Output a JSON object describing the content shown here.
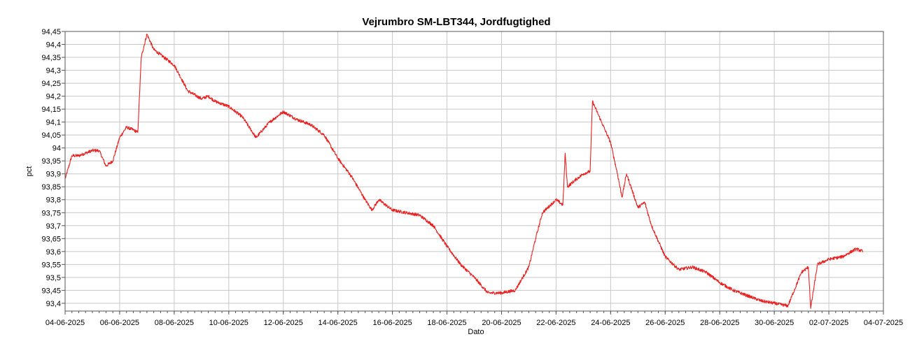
{
  "chart_data": {
    "type": "line",
    "title": "Vejrumbro SM-LBT344, Jordfugtighed",
    "xlabel": "Dato",
    "ylabel": "pct",
    "x_range": [
      "2025-06-04",
      "2025-07-04"
    ],
    "ylim": [
      93.37,
      94.45
    ],
    "grid": true,
    "x_ticks": [
      "04-06-2025",
      "06-06-2025",
      "08-06-2025",
      "10-06-2025",
      "12-06-2025",
      "14-06-2025",
      "16-06-2025",
      "18-06-2025",
      "20-06-2025",
      "22-06-2025",
      "24-06-2025",
      "26-06-2025",
      "28-06-2025",
      "30-06-2025",
      "02-07-2025",
      "04-07-2025"
    ],
    "y_ticks": [
      "93,4",
      "93,45",
      "93,5",
      "93,55",
      "93,6",
      "93,65",
      "93,7",
      "93,75",
      "93,8",
      "93,85",
      "93,9",
      "93,95",
      "94",
      "94,05",
      "94,1",
      "94,15",
      "94,2",
      "94,25",
      "94,3",
      "94,35",
      "94,4",
      "94,45"
    ],
    "series": [
      {
        "color": "#e82020",
        "points": [
          [
            "2025-06-04 00:00",
            93.88
          ],
          [
            "2025-06-04 06:00",
            93.97
          ],
          [
            "2025-06-04 12:00",
            93.97
          ],
          [
            "2025-06-05 00:00",
            93.99
          ],
          [
            "2025-06-05 06:00",
            93.99
          ],
          [
            "2025-06-05 12:00",
            93.93
          ],
          [
            "2025-06-05 18:00",
            93.95
          ],
          [
            "2025-06-06 00:00",
            94.04
          ],
          [
            "2025-06-06 06:00",
            94.08
          ],
          [
            "2025-06-06 12:00",
            94.07
          ],
          [
            "2025-06-06 16:00",
            94.06
          ],
          [
            "2025-06-06 19:00",
            94.35
          ],
          [
            "2025-06-07 00:00",
            94.44
          ],
          [
            "2025-06-07 06:00",
            94.38
          ],
          [
            "2025-06-07 12:00",
            94.36
          ],
          [
            "2025-06-08 00:00",
            94.32
          ],
          [
            "2025-06-08 06:00",
            94.27
          ],
          [
            "2025-06-08 12:00",
            94.22
          ],
          [
            "2025-06-09 00:00",
            94.19
          ],
          [
            "2025-06-09 06:00",
            94.2
          ],
          [
            "2025-06-09 12:00",
            94.18
          ],
          [
            "2025-06-10 00:00",
            94.16
          ],
          [
            "2025-06-10 12:00",
            94.12
          ],
          [
            "2025-06-11 00:00",
            94.04
          ],
          [
            "2025-06-11 12:00",
            94.1
          ],
          [
            "2025-06-12 00:00",
            94.14
          ],
          [
            "2025-06-12 12:00",
            94.11
          ],
          [
            "2025-06-13 00:00",
            94.09
          ],
          [
            "2025-06-13 12:00",
            94.05
          ],
          [
            "2025-06-14 00:00",
            93.96
          ],
          [
            "2025-06-14 12:00",
            93.89
          ],
          [
            "2025-06-15 00:00",
            93.8
          ],
          [
            "2025-06-15 06:00",
            93.76
          ],
          [
            "2025-06-15 12:00",
            93.8
          ],
          [
            "2025-06-16 00:00",
            93.76
          ],
          [
            "2025-06-16 12:00",
            93.75
          ],
          [
            "2025-06-17 00:00",
            93.74
          ],
          [
            "2025-06-17 12:00",
            93.7
          ],
          [
            "2025-06-18 00:00",
            93.62
          ],
          [
            "2025-06-18 12:00",
            93.55
          ],
          [
            "2025-06-19 00:00",
            93.5
          ],
          [
            "2025-06-19 12:00",
            93.44
          ],
          [
            "2025-06-20 00:00",
            93.44
          ],
          [
            "2025-06-20 12:00",
            93.45
          ],
          [
            "2025-06-21 00:00",
            93.54
          ],
          [
            "2025-06-21 06:00",
            93.65
          ],
          [
            "2025-06-21 12:00",
            93.75
          ],
          [
            "2025-06-22 00:00",
            93.8
          ],
          [
            "2025-06-22 06:00",
            93.78
          ],
          [
            "2025-06-22 08:00",
            93.98
          ],
          [
            "2025-06-22 10:00",
            93.85
          ],
          [
            "2025-06-22 18:00",
            93.88
          ],
          [
            "2025-06-23 00:00",
            93.9
          ],
          [
            "2025-06-23 06:00",
            93.91
          ],
          [
            "2025-06-23 08:00",
            94.18
          ],
          [
            "2025-06-23 16:00",
            94.1
          ],
          [
            "2025-06-24 00:00",
            94.02
          ],
          [
            "2025-06-24 06:00",
            93.9
          ],
          [
            "2025-06-24 10:00",
            93.81
          ],
          [
            "2025-06-24 14:00",
            93.9
          ],
          [
            "2025-06-25 00:00",
            93.77
          ],
          [
            "2025-06-25 06:00",
            93.79
          ],
          [
            "2025-06-25 12:00",
            93.7
          ],
          [
            "2025-06-26 00:00",
            93.58
          ],
          [
            "2025-06-26 12:00",
            93.53
          ],
          [
            "2025-06-27 00:00",
            93.54
          ],
          [
            "2025-06-27 12:00",
            93.52
          ],
          [
            "2025-06-28 00:00",
            93.48
          ],
          [
            "2025-06-28 12:00",
            93.45
          ],
          [
            "2025-06-29 00:00",
            93.43
          ],
          [
            "2025-06-29 12:00",
            93.41
          ],
          [
            "2025-06-30 00:00",
            93.4
          ],
          [
            "2025-06-30 12:00",
            93.39
          ],
          [
            "2025-07-01 00:00",
            93.52
          ],
          [
            "2025-07-01 06:00",
            93.54
          ],
          [
            "2025-07-01 08:00",
            93.38
          ],
          [
            "2025-07-01 14:00",
            93.55
          ],
          [
            "2025-07-02 00:00",
            93.57
          ],
          [
            "2025-07-02 12:00",
            93.58
          ],
          [
            "2025-07-03 00:00",
            93.61
          ],
          [
            "2025-07-03 06:00",
            93.6
          ]
        ]
      }
    ]
  }
}
